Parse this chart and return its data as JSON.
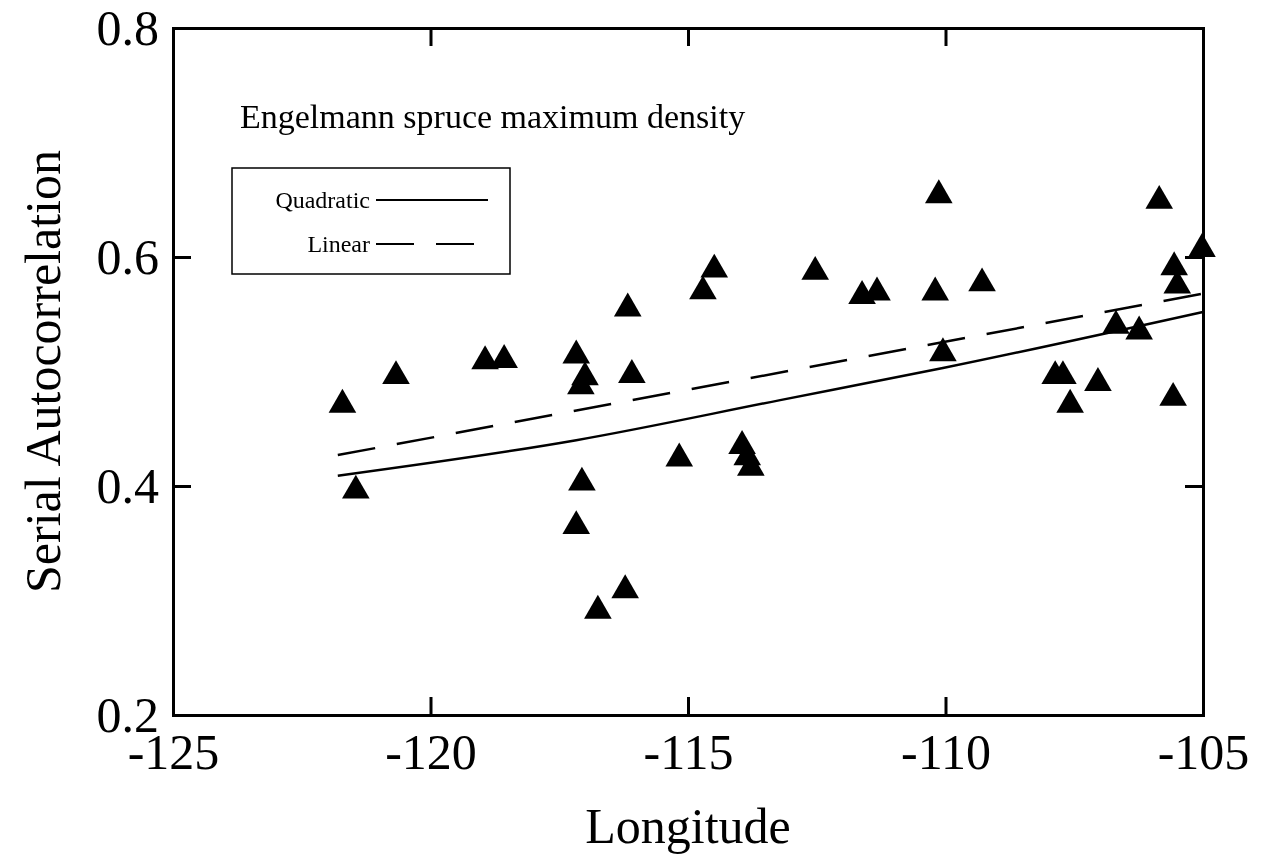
{
  "chart_data": {
    "type": "scatter",
    "title": "Engelmann spruce maximum density",
    "xlabel": "Longitude",
    "ylabel": "Serial Autocorrelation",
    "xlim": [
      -125,
      -105
    ],
    "xticks": [
      -125,
      -120,
      -115,
      -110,
      -105
    ],
    "ylim": [
      0.2,
      0.8
    ],
    "yticks": [
      0.2,
      0.4,
      0.6,
      0.8
    ],
    "legend": "top left",
    "grid": false,
    "series": [
      {
        "marker": "triangle",
        "color": "#000000",
        "x": [
          -121.71,
          -121.45,
          -120.67,
          -118.94,
          -118.57,
          -117.17,
          -117.0,
          -117.08,
          -116.09,
          -116.17,
          -114.71,
          -115.17,
          -113.95,
          -113.85,
          -113.78,
          -117.06,
          -117.17,
          -116.22,
          -116.75,
          -114.49,
          -112.53,
          -111.62,
          -111.33,
          -110.13,
          -110.2,
          -109.29,
          -110.05,
          -107.87,
          -107.72,
          -107.58,
          -107.04,
          -106.69,
          -106.24,
          -105.85,
          -105.56,
          -105.5,
          -105.58,
          -105.02
        ],
        "values": [
          0.471,
          0.396,
          0.496,
          0.509,
          0.51,
          0.514,
          0.495,
          0.487,
          0.497,
          0.555,
          0.57,
          0.424,
          0.435,
          0.425,
          0.416,
          0.403,
          0.365,
          0.309,
          0.291,
          0.589,
          0.587,
          0.566,
          0.569,
          0.654,
          0.569,
          0.577,
          0.516,
          0.496,
          0.496,
          0.471,
          0.49,
          0.54,
          0.535,
          0.649,
          0.591,
          0.575,
          0.477,
          0.607
        ]
      },
      {
        "type": "line",
        "name": "Quadratic",
        "color": "#000000",
        "line_style": "solid",
        "x": [
          -121.8,
          -117.17,
          -113.21,
          -110.05,
          -105
        ],
        "values": [
          0.409,
          0.44,
          0.475,
          0.503,
          0.552
        ]
      },
      {
        "type": "line",
        "name": "Linear",
        "color": "#000000",
        "line_style": "dashed",
        "x": [
          -121.8,
          -105
        ],
        "values": [
          0.427,
          0.568
        ]
      }
    ]
  }
}
